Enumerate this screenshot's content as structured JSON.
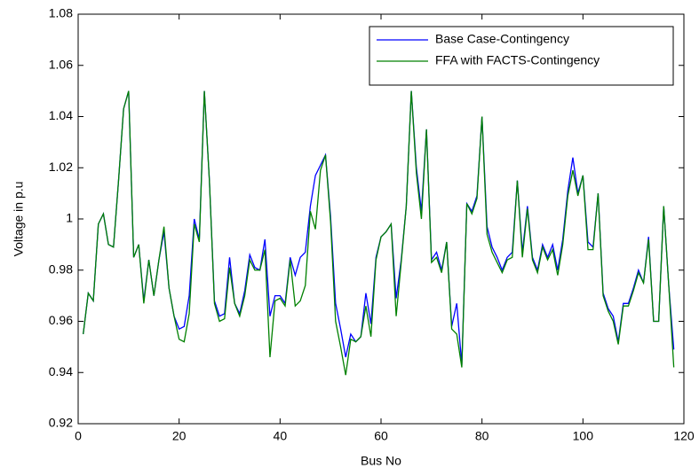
{
  "chart_data": {
    "type": "line",
    "xlabel": "Bus No",
    "ylabel": "Voltage in p.u",
    "x": [
      1,
      2,
      3,
      4,
      5,
      6,
      7,
      8,
      9,
      10,
      11,
      12,
      13,
      14,
      15,
      16,
      17,
      18,
      19,
      20,
      21,
      22,
      23,
      24,
      25,
      26,
      27,
      28,
      29,
      30,
      31,
      32,
      33,
      34,
      35,
      36,
      37,
      38,
      39,
      40,
      41,
      42,
      43,
      44,
      45,
      46,
      47,
      48,
      49,
      50,
      51,
      52,
      53,
      54,
      55,
      56,
      57,
      58,
      59,
      60,
      61,
      62,
      63,
      64,
      65,
      66,
      67,
      68,
      69,
      70,
      71,
      72,
      73,
      74,
      75,
      76,
      77,
      78,
      79,
      80,
      81,
      82,
      83,
      84,
      85,
      86,
      87,
      88,
      89,
      90,
      91,
      92,
      93,
      94,
      95,
      96,
      97,
      98,
      99,
      100,
      101,
      102,
      103,
      104,
      105,
      106,
      107,
      108,
      109,
      110,
      111,
      112,
      113,
      114,
      115,
      116,
      117,
      118
    ],
    "series": [
      {
        "name": "Base Case-Contingency",
        "color": "#0000ff",
        "values": [
          0.955,
          0.971,
          0.968,
          0.998,
          1.002,
          0.99,
          0.989,
          1.015,
          1.043,
          1.05,
          0.985,
          0.99,
          0.968,
          0.984,
          0.97,
          0.984,
          0.995,
          0.973,
          0.962,
          0.957,
          0.958,
          0.97,
          1.0,
          0.992,
          1.05,
          1.015,
          0.968,
          0.962,
          0.963,
          0.985,
          0.967,
          0.963,
          0.972,
          0.986,
          0.981,
          0.98,
          0.992,
          0.962,
          0.97,
          0.97,
          0.967,
          0.985,
          0.978,
          0.985,
          0.987,
          1.005,
          1.017,
          1.021,
          1.025,
          1.001,
          0.967,
          0.957,
          0.946,
          0.955,
          0.952,
          0.954,
          0.971,
          0.959,
          0.985,
          0.993,
          0.995,
          0.998,
          0.969,
          0.984,
          1.005,
          1.05,
          1.02,
          1.003,
          1.035,
          0.984,
          0.987,
          0.98,
          0.991,
          0.958,
          0.967,
          0.943,
          1.006,
          1.003,
          1.009,
          1.04,
          0.997,
          0.989,
          0.985,
          0.98,
          0.985,
          0.987,
          1.015,
          0.987,
          1.005,
          0.985,
          0.98,
          0.99,
          0.985,
          0.99,
          0.98,
          0.992,
          1.011,
          1.024,
          1.01,
          1.017,
          0.991,
          0.989,
          1.01,
          0.971,
          0.965,
          0.962,
          0.952,
          0.967,
          0.967,
          0.973,
          0.98,
          0.975,
          0.993,
          0.96,
          0.96,
          1.005,
          0.974,
          0.949
        ]
      },
      {
        "name": "FFA with FACTS-Contingency",
        "color": "#008000",
        "values": [
          0.955,
          0.971,
          0.968,
          0.998,
          1.002,
          0.99,
          0.989,
          1.015,
          1.043,
          1.05,
          0.985,
          0.99,
          0.967,
          0.984,
          0.97,
          0.984,
          0.997,
          0.973,
          0.962,
          0.953,
          0.952,
          0.963,
          0.998,
          0.991,
          1.05,
          1.015,
          0.967,
          0.96,
          0.961,
          0.981,
          0.967,
          0.962,
          0.97,
          0.984,
          0.98,
          0.98,
          0.988,
          0.946,
          0.968,
          0.969,
          0.966,
          0.984,
          0.966,
          0.968,
          0.974,
          1.003,
          0.996,
          1.019,
          1.025,
          0.999,
          0.96,
          0.95,
          0.939,
          0.953,
          0.952,
          0.954,
          0.966,
          0.954,
          0.984,
          0.993,
          0.995,
          0.998,
          0.962,
          0.983,
          1.005,
          1.05,
          1.018,
          1.0,
          1.035,
          0.983,
          0.985,
          0.979,
          0.991,
          0.957,
          0.955,
          0.942,
          1.006,
          1.002,
          1.008,
          1.04,
          0.994,
          0.987,
          0.983,
          0.979,
          0.984,
          0.985,
          1.015,
          0.985,
          1.004,
          0.984,
          0.979,
          0.989,
          0.984,
          0.988,
          0.978,
          0.99,
          1.009,
          1.019,
          1.009,
          1.017,
          0.988,
          0.988,
          1.01,
          0.97,
          0.964,
          0.96,
          0.951,
          0.966,
          0.966,
          0.972,
          0.979,
          0.975,
          0.992,
          0.96,
          0.96,
          1.005,
          0.974,
          0.942
        ]
      }
    ],
    "xlim": [
      0,
      120
    ],
    "xticks": [
      0,
      20,
      40,
      60,
      80,
      100,
      120
    ],
    "ylim": [
      0.92,
      1.08
    ],
    "yticks": [
      0.92,
      0.94,
      0.96,
      0.98,
      1,
      1.02,
      1.04,
      1.06,
      1.08
    ],
    "legend": "northeast",
    "box": true
  }
}
